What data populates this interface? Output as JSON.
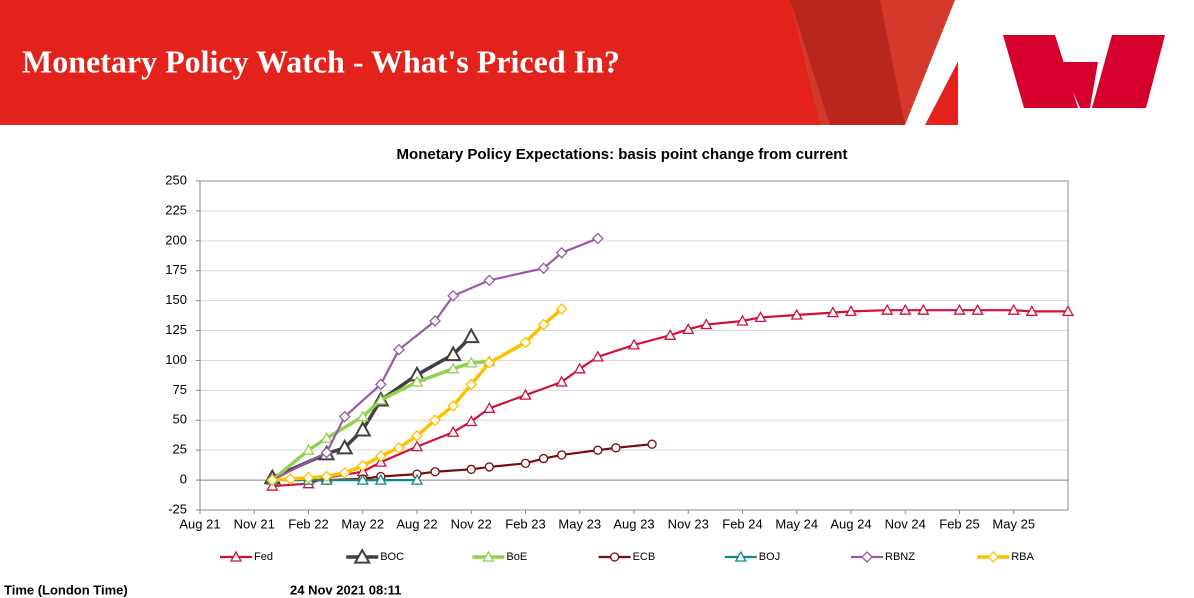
{
  "header": {
    "title": "Monetary Policy Watch - What's Priced In?"
  },
  "chart_data": {
    "type": "line",
    "title": "Monetary Policy Expectations: basis point change from current",
    "xlim": [
      "Aug 21",
      "Aug 25"
    ],
    "xticks": [
      "Aug 21",
      "Nov 21",
      "Feb 22",
      "May 22",
      "Aug 22",
      "Nov 22",
      "Feb 23",
      "May 23",
      "Aug 23",
      "Nov 23",
      "Feb 24",
      "May 24",
      "Aug 24",
      "Nov 24",
      "Feb 25",
      "May 25"
    ],
    "ylim": [
      -25,
      250
    ],
    "yticks": [
      -25,
      0,
      25,
      50,
      75,
      100,
      125,
      150,
      175,
      200,
      225,
      250
    ],
    "grid": true,
    "legend": "bottom",
    "series": [
      {
        "name": "Fed",
        "color": "#d0103a",
        "marker": "triangle",
        "weight": "normal",
        "x": [
          "Dec 21",
          "Feb 22",
          "Mar 22",
          "May 22",
          "Jun 22",
          "Aug 22",
          "Oct 22",
          "Nov 22",
          "Dec 22",
          "Feb 23",
          "Apr 23",
          "May 23",
          "Jun 23",
          "Aug 23",
          "Oct 23",
          "Nov 23",
          "Dec 23",
          "Feb 24",
          "Mar 24",
          "May 24",
          "Jul 24",
          "Aug 24",
          "Oct 24",
          "Nov 24",
          "Dec 24",
          "Feb 25",
          "Mar 25",
          "May 25",
          "Jun 25",
          "Aug 25"
        ],
        "values": [
          -5,
          -3,
          2,
          7,
          15,
          28,
          40,
          49,
          60,
          71,
          82,
          93,
          103,
          113,
          121,
          126,
          130,
          133,
          136,
          138,
          140,
          141,
          142,
          142,
          142,
          142,
          142,
          142,
          141,
          141
        ]
      },
      {
        "name": "BOC",
        "color": "#404040",
        "marker": "triangle-large",
        "weight": "heavy",
        "x": [
          "Dec 21",
          "Mar 22",
          "Apr 22",
          "May 22",
          "Jun 22",
          "Aug 22",
          "Oct 22",
          "Nov 22"
        ],
        "values": [
          2,
          22,
          27,
          42,
          67,
          88,
          105,
          120
        ]
      },
      {
        "name": "BoE",
        "color": "#92d050",
        "marker": "triangle",
        "weight": "heavy",
        "x": [
          "Dec 21",
          "Feb 22",
          "Mar 22",
          "May 22",
          "Jun 22",
          "Aug 22",
          "Oct 22",
          "Nov 22",
          "Dec 22"
        ],
        "values": [
          0,
          25,
          35,
          53,
          67,
          82,
          93,
          98,
          99
        ]
      },
      {
        "name": "ECB",
        "color": "#7b0a0a",
        "marker": "circle",
        "weight": "normal",
        "x": [
          "Mar 22",
          "May 22",
          "Jun 22",
          "Aug 22",
          "Sep 22",
          "Nov 22",
          "Dec 22",
          "Feb 23",
          "Mar 23",
          "Apr 23",
          "Jun 23",
          "Jul 23",
          "Sep 23"
        ],
        "values": [
          0,
          1,
          3,
          5,
          7,
          9,
          11,
          14,
          18,
          21,
          25,
          27,
          30
        ]
      },
      {
        "name": "BOJ",
        "color": "#0e8a8a",
        "marker": "triangle",
        "weight": "normal",
        "x": [
          "Dec 21",
          "Feb 22",
          "Mar 22",
          "May 22",
          "Jun 22",
          "Aug 22"
        ],
        "values": [
          0,
          0,
          0,
          0,
          0,
          0
        ]
      },
      {
        "name": "RBNZ",
        "color": "#9b59a6",
        "marker": "diamond",
        "weight": "normal",
        "x": [
          "Dec 21",
          "Mar 22",
          "Apr 22",
          "Jun 22",
          "Jul 22",
          "Sep 22",
          "Oct 22",
          "Dec 22",
          "Mar 23",
          "Apr 23",
          "Jun 23"
        ],
        "values": [
          0,
          23,
          53,
          80,
          109,
          133,
          154,
          167,
          177,
          190,
          202
        ]
      },
      {
        "name": "RBA",
        "color": "#ffc000",
        "marker": "diamond",
        "weight": "heavy",
        "x": [
          "Dec 21",
          "Jan 22",
          "Feb 22",
          "Mar 22",
          "Apr 22",
          "May 22",
          "Jun 22",
          "Jul 22",
          "Aug 22",
          "Sep 22",
          "Oct 22",
          "Nov 22",
          "Dec 22",
          "Feb 23",
          "Mar 23",
          "Apr 23"
        ],
        "values": [
          0,
          1,
          2,
          3,
          6,
          12,
          20,
          27,
          37,
          50,
          62,
          80,
          98,
          115,
          130,
          143
        ]
      }
    ]
  },
  "footer": {
    "label": "Time (London Time)",
    "timestamp": "24 Nov 2021 08:11"
  }
}
